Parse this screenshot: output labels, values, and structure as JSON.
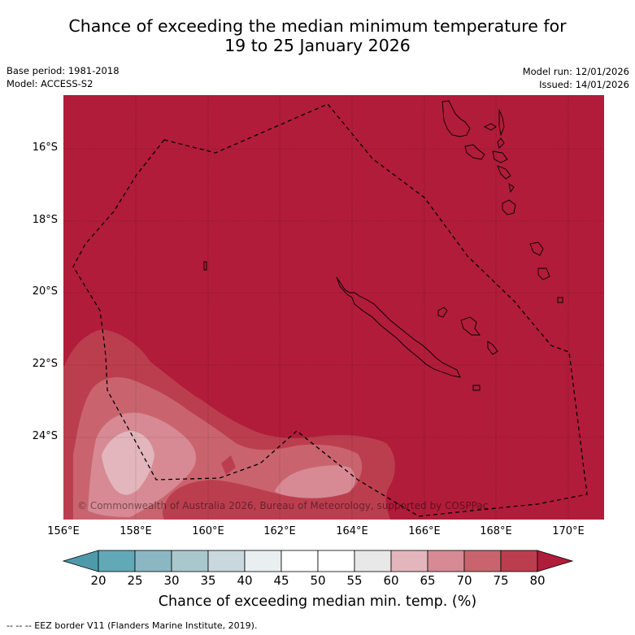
{
  "title_line1": "Chance of exceeding the median minimum temperature for",
  "title_line2": "19 to 25 January 2026",
  "base_period": "Base period: 1981-2018",
  "model": "Model: ACCESS-S2",
  "model_run": "Model run: 12/01/2026",
  "issued": "Issued: 14/01/2026",
  "copyright": "© Commonwealth of Australia 2026, Bureau of Meteorology, supported by COSPPac",
  "lat_ticks": [
    "16°S",
    "18°S",
    "20°S",
    "22°S",
    "24°S"
  ],
  "lon_ticks": [
    "156°E",
    "158°E",
    "160°E",
    "162°E",
    "164°E",
    "166°E",
    "168°E",
    "170°E"
  ],
  "colorbar": {
    "labels": [
      "20",
      "25",
      "30",
      "35",
      "40",
      "45",
      "50",
      "55",
      "60",
      "65",
      "70",
      "75",
      "80"
    ],
    "colors": [
      "#62a9b8",
      "#8ab7c2",
      "#a9c8cd",
      "#c8d8dc",
      "#e9eff0",
      "#ffffff",
      "#ffffff",
      "#e8e8e8",
      "#e2b6bc",
      "#d78a94",
      "#c9646f",
      "#bb3e4f"
    ],
    "low_color": "#4e9aab",
    "high_color": "#b11c3a",
    "title": "Chance of exceeding median min. temp. (%)"
  },
  "footnote": "--  --  -- EEZ border V11 (Flanders Marine Institute, 2019).",
  "map_colors": {
    "base": "#b11c3a",
    "p75": "#bb3e4f",
    "p70": "#c9646f",
    "p65": "#d78a94",
    "p60": "#e2b6bc"
  }
}
